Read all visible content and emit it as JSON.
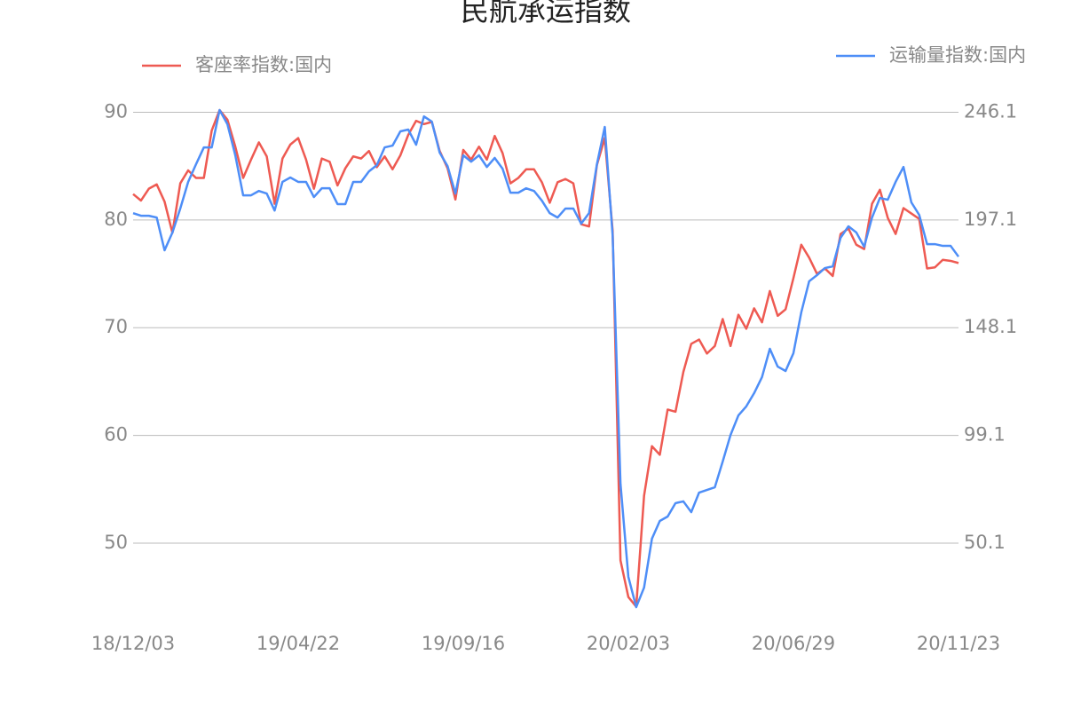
{
  "chart_data": {
    "type": "line",
    "title": "民航承运指数",
    "categories": [
      "18/12/03",
      null,
      null,
      null,
      null,
      null,
      null,
      null,
      null,
      null,
      null,
      null,
      null,
      null,
      null,
      null,
      null,
      null,
      null,
      null,
      null,
      "19/04/22",
      null,
      null,
      null,
      null,
      null,
      null,
      null,
      null,
      null,
      null,
      null,
      null,
      null,
      null,
      null,
      null,
      null,
      null,
      null,
      null,
      "19/09/16",
      null,
      null,
      null,
      null,
      null,
      null,
      null,
      null,
      null,
      null,
      null,
      null,
      null,
      null,
      null,
      null,
      null,
      null,
      null,
      null,
      "20/02/03",
      null,
      null,
      null,
      null,
      null,
      null,
      null,
      null,
      null,
      null,
      null,
      null,
      null,
      null,
      null,
      null,
      null,
      null,
      null,
      null,
      "20/06/29",
      null,
      null,
      null,
      null,
      null,
      null,
      null,
      null,
      null,
      null,
      null,
      null,
      null,
      null,
      null,
      null,
      null,
      null,
      null,
      null,
      "20/11/23"
    ],
    "series": [
      {
        "name": "客座率指数:国内",
        "color": "#ee5a52",
        "axis": "y",
        "values": [
          82.4,
          81.8,
          82.9,
          83.3,
          81.7,
          78.8,
          83.4,
          84.6,
          83.9,
          83.9,
          88.3,
          90.2,
          89.3,
          86.8,
          83.9,
          85.6,
          87.2,
          85.9,
          81.5,
          85.7,
          87.0,
          87.6,
          85.6,
          82.9,
          85.7,
          85.4,
          83.2,
          84.8,
          85.9,
          85.7,
          86.4,
          84.9,
          85.9,
          84.7,
          86.0,
          87.9,
          89.2,
          88.9,
          89.1,
          86.4,
          84.8,
          81.9,
          86.5,
          85.6,
          86.8,
          85.6,
          87.8,
          86.2,
          83.4,
          83.9,
          84.7,
          84.7,
          83.5,
          81.6,
          83.5,
          83.8,
          83.4,
          79.6,
          79.4,
          85.1,
          87.6,
          79.0,
          48.4,
          45.0,
          44.1,
          54.4,
          59.0,
          58.2,
          62.4,
          62.2,
          65.9,
          68.5,
          68.9,
          67.6,
          68.3,
          70.8,
          68.3,
          71.2,
          69.9,
          71.8,
          70.5,
          73.4,
          71.1,
          71.7,
          74.6,
          77.7,
          76.5,
          75.0,
          75.5,
          74.8,
          78.7,
          79.2,
          77.7,
          77.3,
          81.5,
          82.8,
          80.2,
          78.7,
          81.1,
          80.6,
          80.1,
          75.5,
          75.6,
          76.3,
          76.2,
          76.0
        ]
      },
      {
        "name": "运输量指数:国内",
        "color": "#4e8ef7",
        "axis": "y2",
        "values": [
          200.2,
          199.0,
          199.0,
          198.2,
          183.3,
          191.4,
          202.3,
          214.4,
          222.4,
          230.1,
          230.1,
          247.1,
          240.6,
          226.5,
          208.3,
          208.3,
          210.3,
          209.1,
          201.4,
          214.4,
          216.4,
          214.4,
          214.4,
          207.5,
          211.5,
          211.5,
          204.3,
          204.3,
          214.4,
          214.4,
          219.2,
          222.0,
          230.1,
          230.9,
          237.4,
          238.2,
          231.3,
          244.2,
          241.8,
          227.7,
          221.6,
          209.1,
          226.5,
          223.6,
          226.5,
          221.2,
          225.3,
          220.4,
          209.5,
          209.5,
          211.5,
          210.3,
          205.9,
          200.2,
          198.2,
          202.3,
          202.3,
          195.4,
          200.2,
          222.4,
          239.4,
          190.1,
          77.1,
          34.8,
          21.0,
          29.9,
          52.1,
          60.2,
          62.2,
          68.3,
          69.1,
          64.2,
          73.1,
          74.3,
          75.5,
          87.2,
          99.3,
          108.2,
          112.3,
          118.3,
          125.6,
          138.5,
          130.4,
          128.4,
          136.5,
          155.1,
          169.2,
          172.0,
          175.2,
          176.0,
          189.0,
          194.2,
          191.4,
          184.9,
          198.2,
          207.1,
          206.3,
          214.4,
          221.2,
          205.1,
          199.4,
          186.1,
          186.1,
          185.3,
          185.3,
          180.4
        ]
      }
    ],
    "ylim": [
      43.5,
      91
    ],
    "yticks": [
      50,
      60,
      70,
      80,
      90
    ],
    "y2lim": [
      18.25,
      251
    ],
    "y2ticks": [
      50.1,
      99.1,
      148.1,
      197.1,
      246.1
    ],
    "grid": true
  }
}
